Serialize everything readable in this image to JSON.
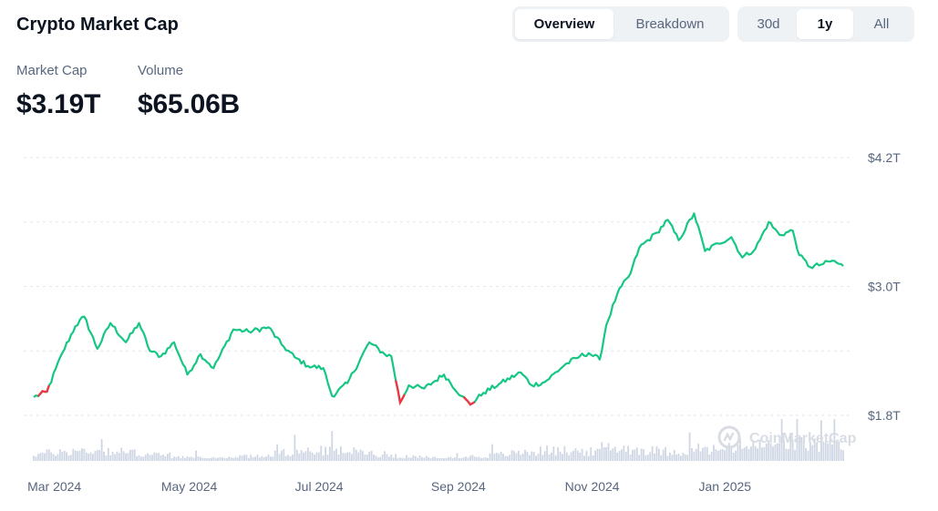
{
  "title": "Crypto Market Cap",
  "view_tabs": [
    {
      "label": "Overview",
      "active": true
    },
    {
      "label": "Breakdown",
      "active": false
    }
  ],
  "range_tabs": [
    {
      "label": "30d",
      "active": false
    },
    {
      "label": "1y",
      "active": true
    },
    {
      "label": "All",
      "active": false
    }
  ],
  "stats": {
    "market_cap": {
      "label": "Market Cap",
      "value": "$3.19T"
    },
    "volume": {
      "label": "Volume",
      "value": "$65.06B"
    }
  },
  "watermark": "CoinMarketCap",
  "colors": {
    "up": "#16c784",
    "down": "#ea3943",
    "volume": "#cfd6e4",
    "grid": "#e3e6ea"
  },
  "chart_data": {
    "type": "line",
    "title": "",
    "xlabel": "",
    "ylabel": "",
    "y_unit": "trillion USD",
    "ylim": [
      1.75,
      4.25
    ],
    "y_ticks": [
      {
        "value": 1.8,
        "label": "$1.8T"
      },
      {
        "value": 3.0,
        "label": "$3.0T"
      },
      {
        "value": 4.2,
        "label": "$4.2T"
      }
    ],
    "x_range": [
      "2024-02-20",
      "2025-02-23"
    ],
    "x_ticks": [
      {
        "date": "2024-03-01",
        "label": "Mar 2024"
      },
      {
        "date": "2024-05-01",
        "label": "May 2024"
      },
      {
        "date": "2024-07-01",
        "label": "Jul 2024"
      },
      {
        "date": "2024-09-01",
        "label": "Sep 2024"
      },
      {
        "date": "2024-11-01",
        "label": "Nov 2024"
      },
      {
        "date": "2025-01-01",
        "label": "Jan 2025"
      }
    ],
    "grid": true,
    "series": [
      {
        "values": [
          [
            "2024-02-20",
            1.97
          ],
          [
            "2024-02-26",
            2.02
          ],
          [
            "2024-03-04",
            2.38
          ],
          [
            "2024-03-10",
            2.63
          ],
          [
            "2024-03-14",
            2.72
          ],
          [
            "2024-03-20",
            2.42
          ],
          [
            "2024-03-26",
            2.66
          ],
          [
            "2024-04-02",
            2.48
          ],
          [
            "2024-04-08",
            2.66
          ],
          [
            "2024-04-13",
            2.4
          ],
          [
            "2024-04-18",
            2.35
          ],
          [
            "2024-04-24",
            2.48
          ],
          [
            "2024-04-30",
            2.18
          ],
          [
            "2024-05-06",
            2.37
          ],
          [
            "2024-05-12",
            2.24
          ],
          [
            "2024-05-21",
            2.6
          ],
          [
            "2024-05-28",
            2.58
          ],
          [
            "2024-06-06",
            2.62
          ],
          [
            "2024-06-12",
            2.46
          ],
          [
            "2024-06-18",
            2.34
          ],
          [
            "2024-06-24",
            2.26
          ],
          [
            "2024-07-01",
            2.24
          ],
          [
            "2024-07-05",
            1.98
          ],
          [
            "2024-07-12",
            2.1
          ],
          [
            "2024-07-22",
            2.48
          ],
          [
            "2024-07-29",
            2.37
          ],
          [
            "2024-08-01",
            2.35
          ],
          [
            "2024-08-05",
            1.92
          ],
          [
            "2024-08-09",
            2.08
          ],
          [
            "2024-08-16",
            2.05
          ],
          [
            "2024-08-25",
            2.18
          ],
          [
            "2024-09-02",
            1.98
          ],
          [
            "2024-09-06",
            1.9
          ],
          [
            "2024-09-12",
            2.01
          ],
          [
            "2024-09-19",
            2.09
          ],
          [
            "2024-09-29",
            2.2
          ],
          [
            "2024-10-04",
            2.08
          ],
          [
            "2024-10-10",
            2.11
          ],
          [
            "2024-10-19",
            2.27
          ],
          [
            "2024-10-26",
            2.35
          ],
          [
            "2024-10-30",
            2.38
          ],
          [
            "2024-11-04",
            2.32
          ],
          [
            "2024-11-07",
            2.64
          ],
          [
            "2024-11-12",
            2.93
          ],
          [
            "2024-11-18",
            3.12
          ],
          [
            "2024-11-22",
            3.36
          ],
          [
            "2024-11-30",
            3.5
          ],
          [
            "2024-12-05",
            3.62
          ],
          [
            "2024-12-10",
            3.43
          ],
          [
            "2024-12-17",
            3.68
          ],
          [
            "2024-12-22",
            3.33
          ],
          [
            "2024-12-28",
            3.4
          ],
          [
            "2025-01-03",
            3.46
          ],
          [
            "2025-01-08",
            3.27
          ],
          [
            "2025-01-14",
            3.35
          ],
          [
            "2025-01-20",
            3.6
          ],
          [
            "2025-01-25",
            3.48
          ],
          [
            "2025-01-31",
            3.52
          ],
          [
            "2025-02-03",
            3.29
          ],
          [
            "2025-02-08",
            3.18
          ],
          [
            "2025-02-14",
            3.21
          ],
          [
            "2025-02-18",
            3.24
          ],
          [
            "2025-02-23",
            3.19
          ]
        ],
        "negative_segments": [
          [
            "2024-02-23",
            "2024-02-26"
          ],
          [
            "2024-08-04",
            "2024-08-06"
          ],
          [
            "2024-09-04",
            "2024-09-07"
          ]
        ]
      }
    ],
    "volume_bars": "daily trading volume bars along the bottom (relative scale, no axis)"
  }
}
